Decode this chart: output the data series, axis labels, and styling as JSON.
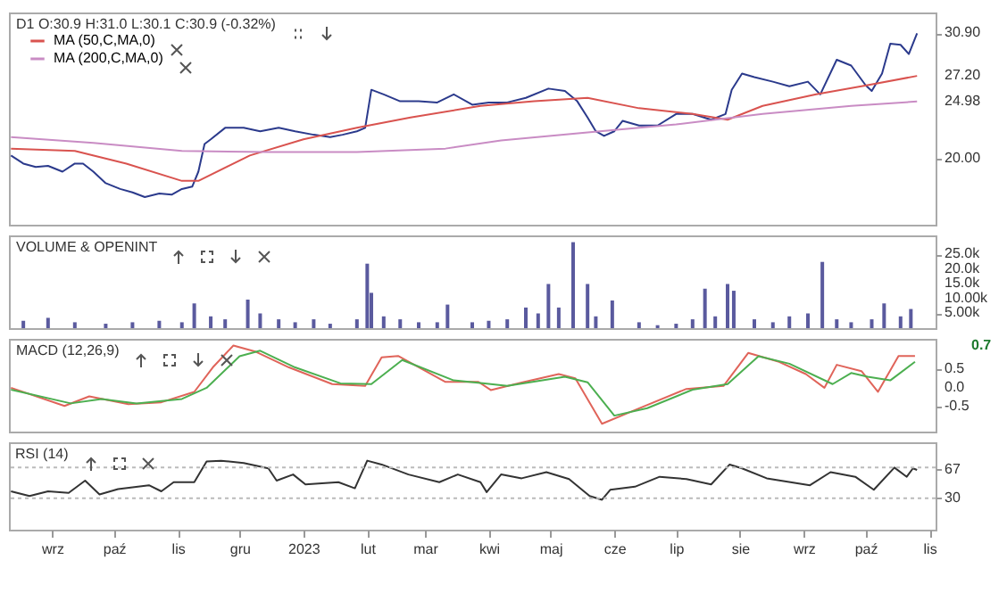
{
  "chart_data": [
    {
      "type": "line",
      "title": "D1 O:30.9 H:31.0 L:30.1 C:30.9 (-0.32%)",
      "legend": "top left",
      "tick_labels": "y",
      "xlim": [
        "2022-08-11",
        "2023-11-04"
      ],
      "ylim": [
        14.3,
        32.7
      ],
      "yticks": [
        {
          "value": 20,
          "label": "20.00"
        },
        {
          "value": 24.98,
          "label": "24.98"
        },
        {
          "value": 27.2,
          "label": "27.20"
        },
        {
          "value": 30.9,
          "label": "30.90"
        }
      ],
      "series": [
        {
          "color": "#2b3a8c",
          "x": [
            "2022-08-12",
            "2022-08-18",
            "2022-08-24",
            "2022-08-30",
            "2022-09-06",
            "2022-09-12",
            "2022-09-16",
            "2022-09-21",
            "2022-09-27",
            "2022-10-04",
            "2022-10-10",
            "2022-10-16",
            "2022-10-23",
            "2022-10-29",
            "2022-11-03",
            "2022-11-08",
            "2022-11-11",
            "2022-11-14",
            "2022-11-17",
            "2022-11-24",
            "2022-12-03",
            "2022-12-11",
            "2022-12-20",
            "2022-12-28",
            "2023-01-06",
            "2023-01-14",
            "2023-01-20",
            "2023-01-27",
            "2023-01-31",
            "2023-02-03",
            "2023-02-09",
            "2023-02-17",
            "2023-02-26",
            "2023-03-07",
            "2023-03-15",
            "2023-03-24",
            "2023-04-01",
            "2023-04-10",
            "2023-04-19",
            "2023-04-30",
            "2023-05-08",
            "2023-05-14",
            "2023-05-19",
            "2023-05-23",
            "2023-05-27",
            "2023-06-01",
            "2023-06-05",
            "2023-06-13",
            "2023-06-22",
            "2023-07-01",
            "2023-07-09",
            "2023-07-18",
            "2023-07-25",
            "2023-07-28",
            "2023-08-02",
            "2023-08-08",
            "2023-08-17",
            "2023-08-25",
            "2023-09-03",
            "2023-09-09",
            "2023-09-17",
            "2023-09-24",
            "2023-10-01",
            "2023-10-04",
            "2023-10-09",
            "2023-10-13",
            "2023-10-18",
            "2023-10-22",
            "2023-10-26"
          ],
          "values": [
            20.3,
            19.6,
            19.3,
            19.4,
            18.9,
            19.6,
            19.6,
            18.9,
            17.9,
            17.4,
            17.1,
            16.7,
            17.0,
            16.9,
            17.4,
            17.6,
            18.9,
            21.3,
            21.7,
            22.7,
            22.7,
            22.4,
            22.7,
            22.4,
            22.1,
            21.9,
            22.1,
            22.4,
            22.7,
            26.0,
            25.6,
            25.0,
            25.0,
            24.9,
            25.6,
            24.7,
            24.9,
            24.9,
            25.3,
            26.1,
            25.9,
            25.0,
            23.6,
            22.4,
            22.0,
            22.4,
            23.3,
            22.9,
            22.9,
            23.9,
            23.9,
            23.4,
            23.9,
            26.0,
            27.4,
            27.1,
            26.7,
            26.3,
            26.7,
            25.6,
            28.6,
            28.1,
            26.4,
            25.9,
            27.4,
            30.0,
            29.9,
            29.1,
            30.9
          ]
        },
        {
          "name": "MA (50,C,MA,0)",
          "color": "#d9534f",
          "x": [
            "2022-08-12",
            "2022-09-12",
            "2022-10-07",
            "2022-11-03",
            "2022-11-11",
            "2022-12-06",
            "2023-01-01",
            "2023-01-27",
            "2023-02-22",
            "2023-03-28",
            "2023-04-23",
            "2023-05-19",
            "2023-06-13",
            "2023-07-09",
            "2023-07-26",
            "2023-08-12",
            "2023-09-07",
            "2023-10-02",
            "2023-10-26"
          ],
          "values": [
            20.9,
            20.7,
            19.6,
            18.1,
            18.1,
            20.3,
            21.7,
            22.7,
            23.6,
            24.6,
            25.0,
            25.3,
            24.4,
            23.9,
            23.4,
            24.6,
            25.6,
            26.4,
            27.2
          ]
        },
        {
          "name": "MA (200,C,MA,0)",
          "color": "#c98cc4",
          "x": [
            "2022-08-12",
            "2022-09-21",
            "2022-11-03",
            "2022-12-15",
            "2023-01-27",
            "2023-03-11",
            "2023-04-07",
            "2023-05-19",
            "2023-07-01",
            "2023-08-12",
            "2023-09-24",
            "2023-10-26"
          ],
          "values": [
            21.9,
            21.4,
            20.7,
            20.6,
            20.6,
            20.9,
            21.6,
            22.3,
            23.0,
            23.9,
            24.6,
            24.98
          ]
        }
      ]
    },
    {
      "type": "bar",
      "title": "VOLUME & OPENINT",
      "tick_labels": "y",
      "xlim": [
        "2022-08-11",
        "2023-11-04"
      ],
      "ylim": [
        0,
        31.5
      ],
      "yticks": [
        {
          "value": 5,
          "label": "5.00k"
        },
        {
          "value": 10,
          "label": "10.00k"
        },
        {
          "value": 15,
          "label": "15.0k"
        },
        {
          "value": 20,
          "label": "20.0k"
        },
        {
          "value": 25,
          "label": "25.0k"
        }
      ],
      "series": [
        {
          "color": "#5a5a9e",
          "x": [
            "2022-08-18",
            "2022-08-30",
            "2022-09-12",
            "2022-09-27",
            "2022-10-10",
            "2022-10-23",
            "2022-11-03",
            "2022-11-09",
            "2022-11-17",
            "2022-11-24",
            "2022-12-05",
            "2022-12-11",
            "2022-12-20",
            "2022-12-28",
            "2023-01-06",
            "2023-01-14",
            "2023-01-27",
            "2023-02-01",
            "2023-02-03",
            "2023-02-09",
            "2023-02-17",
            "2023-02-26",
            "2023-03-07",
            "2023-03-12",
            "2023-03-24",
            "2023-04-01",
            "2023-04-10",
            "2023-04-19",
            "2023-04-25",
            "2023-04-30",
            "2023-05-05",
            "2023-05-12",
            "2023-05-19",
            "2023-05-23",
            "2023-05-31",
            "2023-06-13",
            "2023-06-22",
            "2023-07-01",
            "2023-07-09",
            "2023-07-15",
            "2023-07-20",
            "2023-07-26",
            "2023-07-29",
            "2023-08-08",
            "2023-08-17",
            "2023-08-25",
            "2023-09-03",
            "2023-09-10",
            "2023-09-17",
            "2023-09-24",
            "2023-10-04",
            "2023-10-10",
            "2023-10-18",
            "2023-10-23"
          ],
          "values": [
            2.5,
            3.5,
            2,
            1.5,
            2,
            2.5,
            2,
            8.4,
            4,
            3,
            9.7,
            5,
            3,
            2,
            3,
            1.5,
            3,
            21.9,
            12,
            4,
            3,
            2,
            2,
            8,
            2,
            2.5,
            3,
            7,
            5,
            15,
            7,
            29.2,
            15,
            4,
            9.4,
            2,
            1,
            1.5,
            3,
            13.4,
            4,
            15,
            12.7,
            3,
            2,
            4,
            5,
            22.5,
            3,
            2,
            3,
            8.4,
            4,
            6.5
          ]
        }
      ]
    },
    {
      "type": "line",
      "title": "MACD (12,26,9)",
      "tick_labels": "y",
      "xlim": [
        "2022-08-11",
        "2023-11-04"
      ],
      "ylim": [
        -1.18,
        1.32
      ],
      "yticks": [
        {
          "value": 0.5,
          "label": "0.5"
        },
        {
          "value": 0,
          "label": "0.0"
        },
        {
          "value": -0.5,
          "label": "-0.5"
        }
      ],
      "series": [
        {
          "color": "#e0645a",
          "x": [
            "2022-08-12",
            "2022-09-07",
            "2022-09-19",
            "2022-10-08",
            "2022-10-24",
            "2022-11-09",
            "2022-11-18",
            "2022-11-28",
            "2022-12-09",
            "2022-12-25",
            "2023-01-15",
            "2023-01-31",
            "2023-02-08",
            "2023-02-16",
            "2023-03-11",
            "2023-03-27",
            "2023-04-02",
            "2023-04-17",
            "2023-05-05",
            "2023-05-13",
            "2023-05-26",
            "2023-06-11",
            "2023-07-06",
            "2023-07-24",
            "2023-08-05",
            "2023-08-20",
            "2023-09-02",
            "2023-09-11",
            "2023-09-17",
            "2023-09-29",
            "2023-10-07",
            "2023-10-17",
            "2023-10-25"
          ],
          "values": [
            0.0,
            -0.49,
            -0.23,
            -0.44,
            -0.39,
            -0.11,
            0.55,
            1.14,
            0.97,
            0.55,
            0.1,
            0.05,
            0.82,
            0.86,
            0.16,
            0.16,
            -0.06,
            0.14,
            0.37,
            0.26,
            -0.97,
            -0.6,
            -0.03,
            0.05,
            0.94,
            0.7,
            0.37,
            0.0,
            0.62,
            0.45,
            -0.11,
            0.86,
            0.86
          ]
        },
        {
          "color": "#4caf50",
          "x": [
            "2022-08-12",
            "2022-09-10",
            "2022-09-25",
            "2022-10-12",
            "2022-11-03",
            "2022-11-15",
            "2022-12-01",
            "2022-12-11",
            "2022-12-28",
            "2023-01-19",
            "2023-02-03",
            "2023-02-18",
            "2023-03-15",
            "2023-03-30",
            "2023-04-10",
            "2023-05-08",
            "2023-05-19",
            "2023-06-01",
            "2023-06-17",
            "2023-07-09",
            "2023-07-26",
            "2023-08-10",
            "2023-08-25",
            "2023-09-15",
            "2023-09-24",
            "2023-10-02",
            "2023-10-13",
            "2023-10-25"
          ],
          "values": [
            -0.05,
            -0.42,
            -0.3,
            -0.42,
            -0.3,
            0.0,
            0.85,
            1.0,
            0.55,
            0.12,
            0.1,
            0.75,
            0.2,
            0.12,
            0.05,
            0.3,
            0.15,
            -0.75,
            -0.55,
            -0.05,
            0.1,
            0.85,
            0.65,
            0.1,
            0.4,
            0.3,
            0.2,
            0.7
          ]
        }
      ],
      "annotations": [
        "0.7"
      ]
    },
    {
      "type": "line",
      "title": "RSI (14)",
      "xlim": [
        "2022-08-11",
        "2023-11-04"
      ],
      "xticks": [
        {
          "value": "2022-09-01",
          "label": "wrz"
        },
        {
          "value": "2022-10-01",
          "label": "paź"
        },
        {
          "value": "2022-11-01",
          "label": "lis"
        },
        {
          "value": "2022-12-01",
          "label": "gru"
        },
        {
          "value": "2023-01-01",
          "label": "2023"
        },
        {
          "value": "2023-02-01",
          "label": "lut"
        },
        {
          "value": "2023-03-01",
          "label": "mar"
        },
        {
          "value": "2023-04-01",
          "label": "kwi"
        },
        {
          "value": "2023-05-01",
          "label": "maj"
        },
        {
          "value": "2023-06-01",
          "label": "cze"
        },
        {
          "value": "2023-07-01",
          "label": "lip"
        },
        {
          "value": "2023-08-01",
          "label": "sie"
        },
        {
          "value": "2023-09-01",
          "label": "wrz"
        },
        {
          "value": "2023-10-01",
          "label": "paź"
        },
        {
          "value": "2023-11-01",
          "label": "lis"
        }
      ],
      "ylim": [
        -11,
        103
      ],
      "yticks": [
        30,
        67
      ],
      "ref_lines": [
        {
          "axis": "y",
          "value": 70,
          "color": "#bbbbbb",
          "line_style": "dotted"
        },
        {
          "axis": "y",
          "value": 30,
          "color": "#bbbbbb",
          "line_style": "dotted"
        }
      ],
      "series": [
        {
          "color": "#333333",
          "x": [
            "2022-08-12",
            "2022-08-21",
            "2022-08-30",
            "2022-09-09",
            "2022-09-17",
            "2022-09-24",
            "2022-10-03",
            "2022-10-18",
            "2022-10-24",
            "2022-10-30",
            "2022-11-09",
            "2022-11-15",
            "2022-11-22",
            "2022-12-03",
            "2022-12-15",
            "2022-12-19",
            "2022-12-27",
            "2023-01-02",
            "2023-01-18",
            "2023-01-26",
            "2023-02-01",
            "2023-02-08",
            "2023-02-21",
            "2023-03-08",
            "2023-03-17",
            "2023-03-28",
            "2023-03-31",
            "2023-04-07",
            "2023-04-17",
            "2023-04-29",
            "2023-05-10",
            "2023-05-20",
            "2023-05-26",
            "2023-05-30",
            "2023-06-11",
            "2023-06-23",
            "2023-07-06",
            "2023-07-18",
            "2023-07-27",
            "2023-08-02",
            "2023-08-14",
            "2023-09-04",
            "2023-09-14",
            "2023-09-26",
            "2023-10-05",
            "2023-10-15",
            "2023-10-21",
            "2023-10-24",
            "2023-10-26"
          ],
          "values": [
            39,
            33,
            39,
            37,
            53,
            35,
            42,
            47,
            39,
            51,
            51,
            78,
            79,
            76,
            69,
            53,
            61,
            48,
            51,
            43,
            79,
            74,
            61,
            51,
            61,
            51,
            38,
            61,
            56,
            64,
            55,
            33,
            28,
            41,
            45,
            58,
            55,
            48,
            74,
            69,
            56,
            47,
            64,
            58,
            41,
            70,
            58,
            69,
            67
          ]
        }
      ]
    }
  ]
}
